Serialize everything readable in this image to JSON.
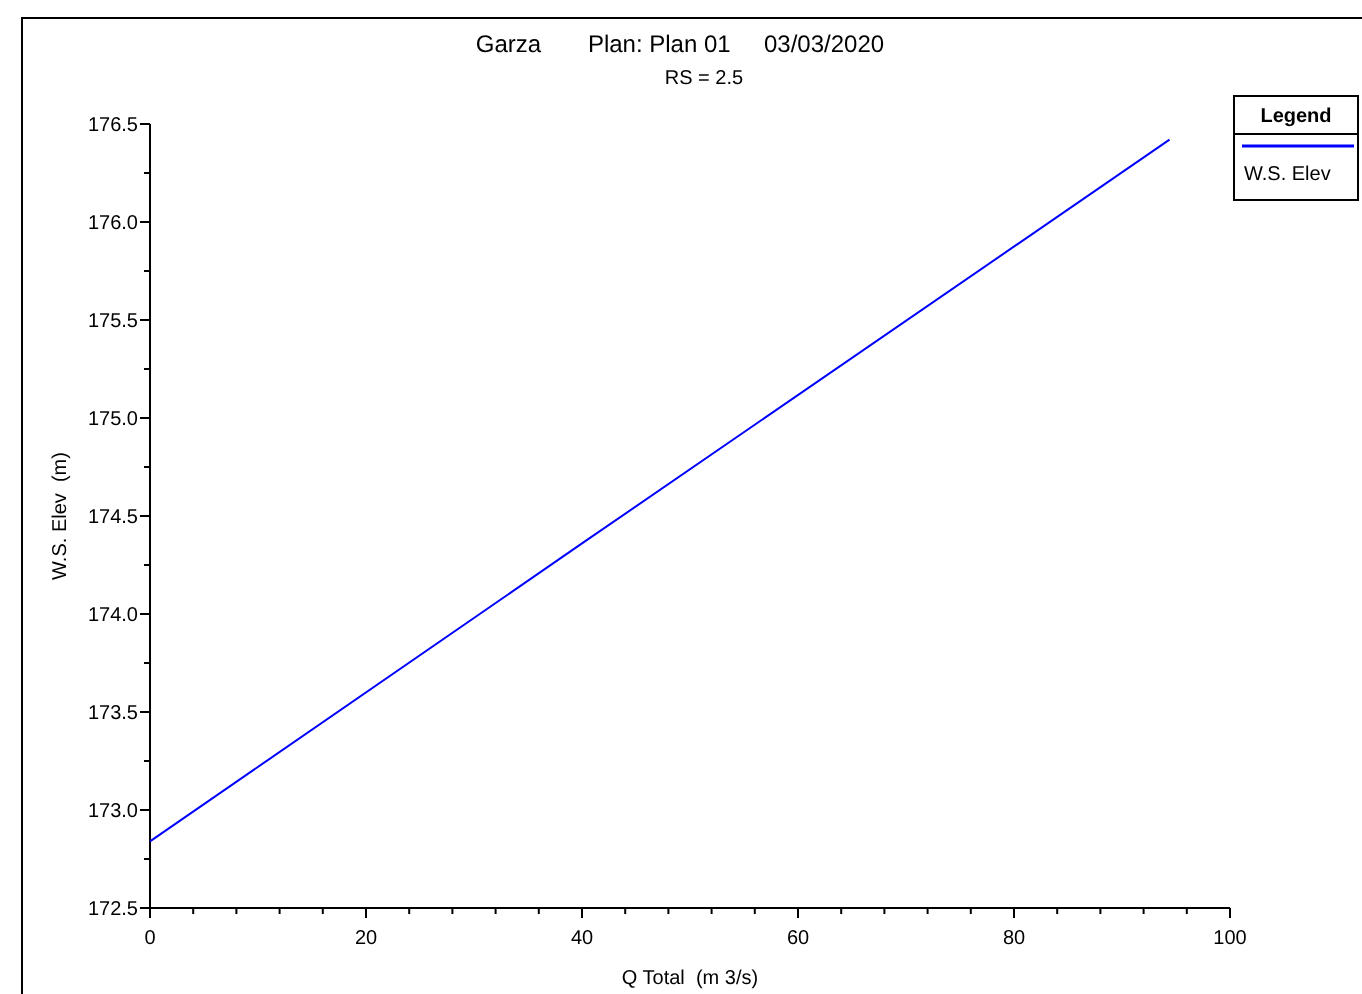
{
  "chart_data": {
    "type": "line",
    "title": "Garza       Plan: Plan 01     03/03/2020",
    "subtitle": "RS = 2.5",
    "xlabel": "Q Total  (m 3/s)",
    "ylabel": "W.S. Elev  (m)",
    "legend_title": "Legend",
    "series": [
      {
        "name": "W.S. Elev",
        "color": "#0000ff",
        "x": [
          0,
          40,
          94.4
        ],
        "values": [
          172.84,
          174.36,
          176.42
        ]
      }
    ],
    "xlim": [
      0,
      100
    ],
    "xticks": [
      0,
      {
        "value": 4,
        "label": null
      },
      {
        "value": 8,
        "label": null
      },
      {
        "value": 12,
        "label": null
      },
      {
        "value": 16,
        "label": null
      },
      20,
      {
        "value": 24,
        "label": null
      },
      {
        "value": 28,
        "label": null
      },
      {
        "value": 32,
        "label": null
      },
      {
        "value": 36,
        "label": null
      },
      40,
      {
        "value": 44,
        "label": null
      },
      {
        "value": 48,
        "label": null
      },
      {
        "value": 52,
        "label": null
      },
      {
        "value": 56,
        "label": null
      },
      60,
      {
        "value": 64,
        "label": null
      },
      {
        "value": 68,
        "label": null
      },
      {
        "value": 72,
        "label": null
      },
      {
        "value": 76,
        "label": null
      },
      80,
      {
        "value": 84,
        "label": null
      },
      {
        "value": 88,
        "label": null
      },
      {
        "value": 92,
        "label": null
      },
      {
        "value": 96,
        "label": null
      },
      100
    ],
    "ylim": [
      172.5,
      176.5
    ],
    "yticks": [
      {
        "value": 172.5,
        "label": "172.5"
      },
      {
        "value": 172.75,
        "label": null
      },
      {
        "value": 173,
        "label": "173.0"
      },
      {
        "value": 173.25,
        "label": null
      },
      {
        "value": 173.5,
        "label": "173.5"
      },
      {
        "value": 173.75,
        "label": null
      },
      {
        "value": 174,
        "label": "174.0"
      },
      {
        "value": 174.25,
        "label": null
      },
      {
        "value": 174.5,
        "label": "174.5"
      },
      {
        "value": 174.75,
        "label": null
      },
      {
        "value": 175,
        "label": "175.0"
      },
      {
        "value": 175.25,
        "label": null
      },
      {
        "value": 175.5,
        "label": "175.5"
      },
      {
        "value": 175.75,
        "label": null
      },
      {
        "value": 176,
        "label": "176.0"
      },
      {
        "value": 176.25,
        "label": null
      },
      {
        "value": 176.5,
        "label": "176.5"
      }
    ],
    "grid": false,
    "legend": "top right",
    "marker": "none",
    "line_style": "solid"
  }
}
